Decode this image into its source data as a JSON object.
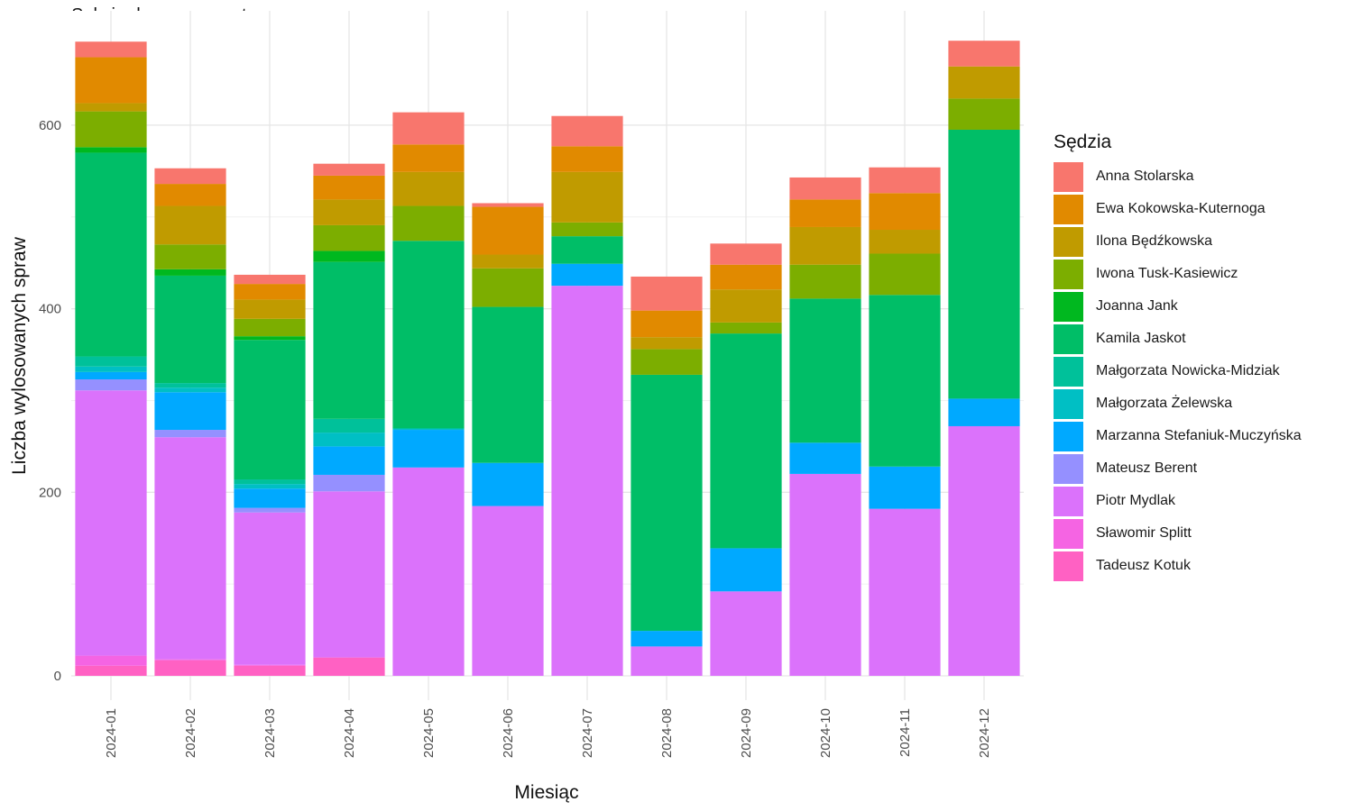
{
  "chart_data": {
    "type": "bar",
    "stacked": true,
    "title": "Sekcja ds.rozp.w post.uproszczonym",
    "xlabel": "Miesiąc",
    "ylabel": "Liczba wylosowanych spraw",
    "legend_title": "Sędzia",
    "legend_position": "right",
    "grid": true,
    "ylim": [
      0,
      690
    ],
    "yticks": [
      0,
      200,
      400,
      600
    ],
    "categories": [
      "2024-01",
      "2024-02",
      "2024-03",
      "2024-04",
      "2024-05",
      "2024-06",
      "2024-07",
      "2024-08",
      "2024-09",
      "2024-10",
      "2024-11",
      "2024-12"
    ],
    "series": [
      {
        "name": "Tadeusz Kotuk",
        "color": "#FF61C3",
        "values": [
          11,
          17,
          11,
          20,
          0,
          0,
          0,
          0,
          0,
          0,
          0,
          0
        ]
      },
      {
        "name": "Sławomir Splitt",
        "color": "#F564E3",
        "values": [
          11,
          1,
          1,
          0,
          0,
          0,
          0,
          0,
          0,
          0,
          0,
          0
        ]
      },
      {
        "name": "Piotr Mydlak",
        "color": "#DB72FB",
        "values": [
          289,
          242,
          166,
          181,
          227,
          185,
          425,
          32,
          92,
          220,
          182,
          272
        ]
      },
      {
        "name": "Mateusz Berent",
        "color": "#9590FF",
        "values": [
          12,
          8,
          5,
          18,
          0,
          0,
          0,
          0,
          0,
          0,
          0,
          0
        ]
      },
      {
        "name": "Marzanna Stefaniuk-Muczyńska",
        "color": "#00A9FF",
        "values": [
          8,
          41,
          21,
          31,
          41,
          47,
          24,
          17,
          47,
          34,
          46,
          30
        ]
      },
      {
        "name": "Małgorzata Żelewska",
        "color": "#00BFC4",
        "values": [
          6,
          5,
          5,
          15,
          1,
          0,
          0,
          0,
          0,
          0,
          0,
          0
        ]
      },
      {
        "name": "Małgorzata Nowicka-Midziak",
        "color": "#00C19A",
        "values": [
          11,
          5,
          5,
          15,
          1,
          0,
          0,
          0,
          0,
          0,
          0,
          0
        ]
      },
      {
        "name": "Kamila Jaskot",
        "color": "#00BE67",
        "values": [
          222,
          117,
          152,
          171,
          204,
          170,
          30,
          279,
          234,
          157,
          187,
          293
        ]
      },
      {
        "name": "Joanna Jank",
        "color": "#00B81F",
        "values": [
          6,
          7,
          4,
          12,
          0,
          0,
          0,
          0,
          0,
          0,
          0,
          0
        ]
      },
      {
        "name": "Iwona Tusk-Kasiewicz",
        "color": "#7CAE00",
        "values": [
          39,
          27,
          19,
          28,
          38,
          42,
          15,
          28,
          12,
          37,
          45,
          34
        ]
      },
      {
        "name": "Ilona Będźkowska",
        "color": "#C09B00",
        "values": [
          9,
          42,
          21,
          28,
          37,
          15,
          55,
          13,
          36,
          41,
          26,
          35
        ]
      },
      {
        "name": "Ewa Kokowska-Kuternoga",
        "color": "#E18A00",
        "values": [
          50,
          24,
          17,
          26,
          30,
          52,
          28,
          29,
          27,
          30,
          40,
          0
        ]
      },
      {
        "name": "Anna Stolarska",
        "color": "#F8766D",
        "values": [
          17,
          17,
          10,
          13,
          35,
          4,
          33,
          37,
          23,
          24,
          28,
          28
        ]
      }
    ]
  }
}
